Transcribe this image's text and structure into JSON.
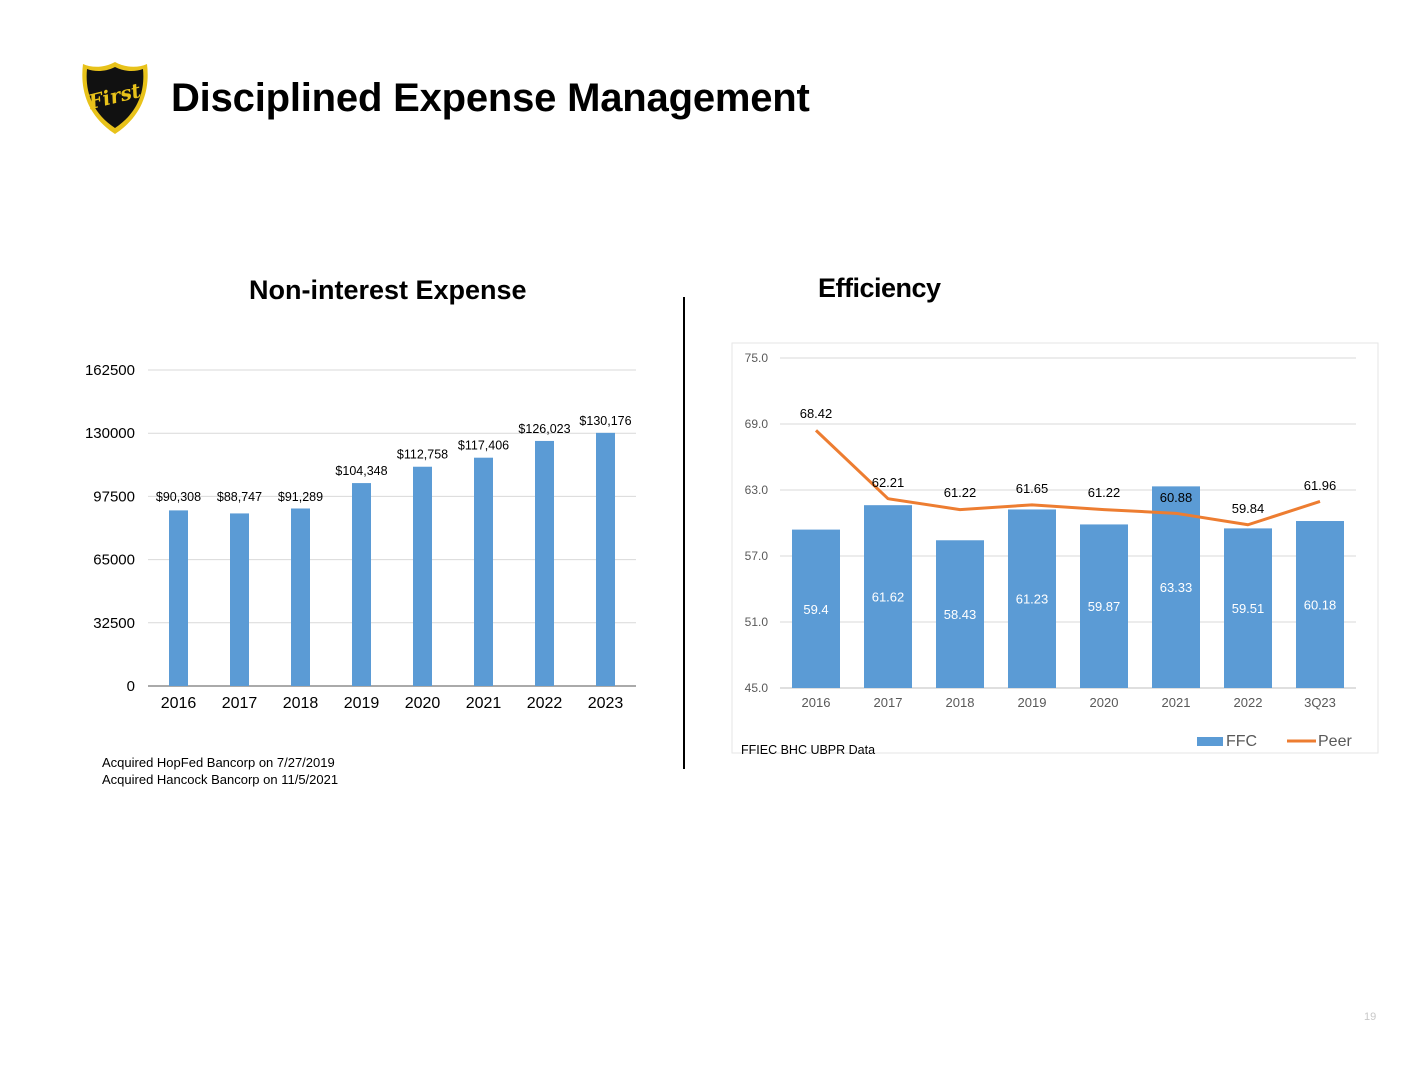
{
  "header": {
    "title": "Disciplined Expense Management",
    "logo_text": "First",
    "page_number": "19"
  },
  "notes": {
    "line1": "Acquired HopFed Bancorp on 7/27/2019",
    "line2": "Acquired Hancock Bancorp on 11/5/2021"
  },
  "colors": {
    "bar": "#5B9BD5",
    "line": "#ED7D31",
    "grid": "#D9D9D9",
    "shield_gold": "#E8C21A",
    "shield_dark": "#111111"
  },
  "chart_data": [
    {
      "type": "bar",
      "title": "Non-interest Expense",
      "categories": [
        "2016",
        "2017",
        "2018",
        "2019",
        "2020",
        "2021",
        "2022",
        "2023"
      ],
      "values": [
        90308,
        88747,
        91289,
        104348,
        112758,
        117406,
        126023,
        130176
      ],
      "data_labels": [
        "$90,308",
        "$88,747",
        "$91,289",
        "$104,348",
        "$112,758",
        "$117,406",
        "$126,023",
        "$130,176"
      ],
      "ylim": [
        0,
        162500
      ],
      "yticks": [
        "0",
        "32500",
        "65000",
        "97500",
        "130000",
        "162500"
      ],
      "grid": true,
      "xlabel": "",
      "ylabel": ""
    },
    {
      "type": "bar",
      "title": "Efficiency",
      "categories": [
        "2016",
        "2017",
        "2018",
        "2019",
        "2020",
        "2021",
        "2022",
        "3Q23"
      ],
      "series": [
        {
          "name": "FFC",
          "type": "bar",
          "values": [
            59.4,
            61.62,
            58.43,
            61.23,
            59.87,
            63.33,
            59.51,
            60.18
          ],
          "labels": [
            "59.4",
            "61.62",
            "58.43",
            "61.23",
            "59.87",
            "63.33",
            "59.51",
            "60.18"
          ]
        },
        {
          "name": "Peer",
          "type": "line",
          "values": [
            68.42,
            62.21,
            61.22,
            61.65,
            61.22,
            60.88,
            59.84,
            61.96
          ],
          "labels": [
            "68.42",
            "62.21",
            "61.22",
            "61.65",
            "61.22",
            "60.88",
            "59.84",
            "61.96"
          ]
        }
      ],
      "ylim": [
        45,
        75
      ],
      "yticks": [
        "45.0",
        "51.0",
        "57.0",
        "63.0",
        "69.0",
        "75.0"
      ],
      "grid": true,
      "legend": "bottom-right",
      "source": "FFIEC BHC UBPR Data"
    }
  ]
}
